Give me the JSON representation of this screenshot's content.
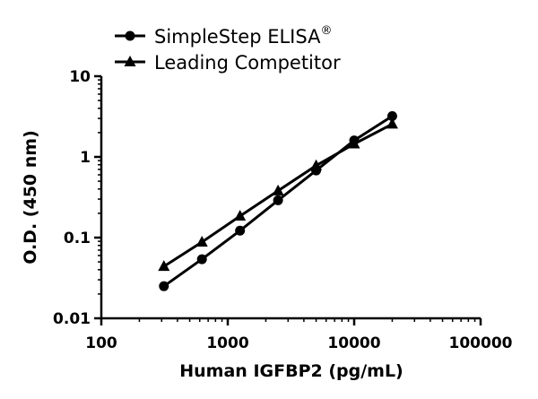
{
  "chart_data": {
    "type": "line",
    "title": "",
    "xlabel": "Human IGFBP2 (pg/mL)",
    "ylabel": "O.D. (450 nm)",
    "xscale": "log",
    "yscale": "log",
    "xlim": [
      100,
      100000
    ],
    "ylim": [
      0.01,
      10
    ],
    "x_ticks": [
      100,
      1000,
      10000,
      100000
    ],
    "x_tick_labels": [
      "100",
      "1000",
      "10000",
      "100000"
    ],
    "y_ticks": [
      0.01,
      0.1,
      1,
      10
    ],
    "y_tick_labels": [
      "0.01",
      "0.1",
      "1",
      "10"
    ],
    "grid": false,
    "legend_position": "top-left",
    "series": [
      {
        "name": "SimpleStep ELISA",
        "name_superscript": "®",
        "marker": "circle",
        "color": "#000000",
        "x": [
          312.5,
          625,
          1250,
          2500,
          5000,
          10000,
          20000
        ],
        "y": [
          0.025,
          0.054,
          0.122,
          0.29,
          0.68,
          1.6,
          3.2
        ]
      },
      {
        "name": "Leading Competitor",
        "marker": "triangle",
        "color": "#000000",
        "x": [
          312.5,
          625,
          1250,
          2500,
          5000,
          10000,
          20000
        ],
        "y": [
          0.044,
          0.088,
          0.185,
          0.38,
          0.78,
          1.45,
          2.55
        ]
      }
    ]
  }
}
